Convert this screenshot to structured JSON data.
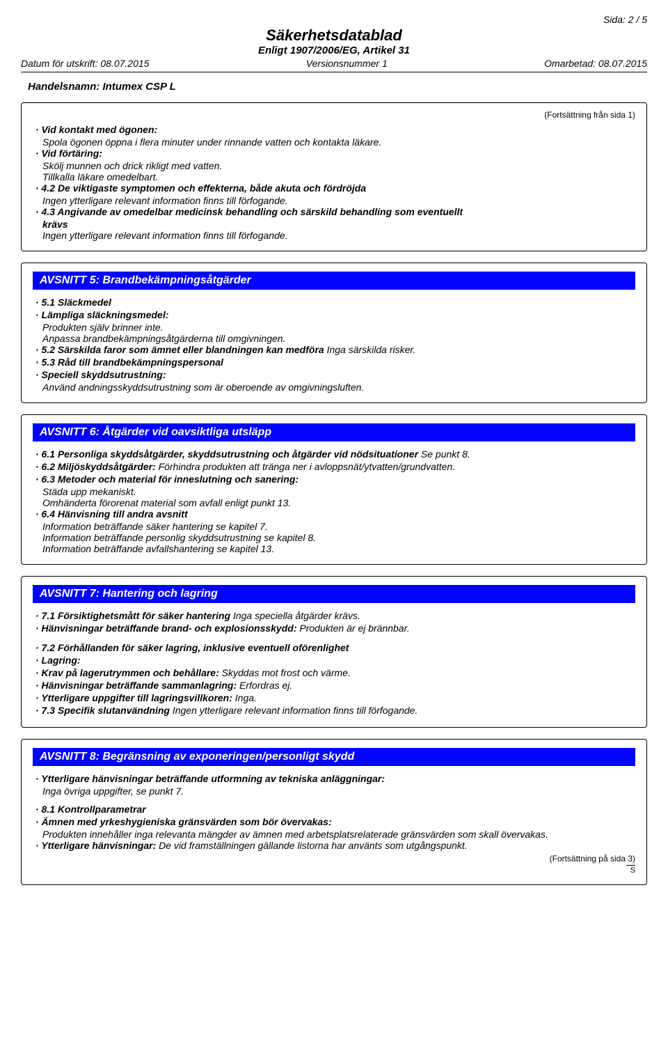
{
  "header": {
    "page_label": "Sida: 2 / 5",
    "title": "Säkerhetsdatablad",
    "subtitle": "Enligt 1907/2006/EG, Artikel 31",
    "print_date": "Datum för utskrift: 08.07.2015",
    "version": "Versionsnummer 1",
    "revised": "Omarbetad: 08.07.2015",
    "trade_name": "Handelsnamn: Intumex CSP L"
  },
  "cont_from": "(Fortsättning från sida 1)",
  "box1": {
    "items": [
      {
        "label": "· Vid kontakt med ögonen:",
        "lines": [
          "Spola ögonen öppna i flera minuter under rinnande vatten och kontakta läkare."
        ]
      },
      {
        "label": "· Vid förtäring:",
        "lines": [
          "Skölj munnen och drick rikligt med vatten.",
          "Tillkalla läkare omedelbart."
        ]
      },
      {
        "label": "· 4.2 De viktigaste symptomen och effekterna, både akuta och fördröjda",
        "lines": [
          "Ingen ytterligare relevant information finns till förfogande."
        ]
      },
      {
        "label": "· 4.3 Angivande av omedelbar medicinsk behandling och särskild behandling som eventuellt",
        "extra_bold": "krävs",
        "lines": [
          "Ingen ytterligare relevant information finns till förfogande."
        ]
      }
    ]
  },
  "section5": {
    "heading": "AVSNITT 5: Brandbekämpningsåtgärder",
    "items": [
      {
        "label": "· 5.1 Släckmedel"
      },
      {
        "label": "· Lämpliga släckningsmedel:",
        "lines": [
          "Produkten själv brinner inte.",
          "Anpassa brandbekämpningsåtgärderna till omgivningen."
        ]
      },
      {
        "label": "· 5.2 Särskilda faror som ämnet eller blandningen kan medföra",
        "inline": "Inga särskilda risker."
      },
      {
        "label": "· 5.3 Råd till brandbekämpningspersonal"
      },
      {
        "label": "· Speciell skyddsutrustning:",
        "lines": [
          "Använd andningsskyddsutrustning som är oberoende av omgivningsluften."
        ]
      }
    ]
  },
  "section6": {
    "heading": "AVSNITT 6: Åtgärder vid oavsiktliga utsläpp",
    "items": [
      {
        "label": "· 6.1 Personliga skyddsåtgärder, skyddsutrustning och åtgärder vid nödsituationer",
        "inline": "Se punkt 8."
      },
      {
        "label": "· 6.2 Miljöskyddsåtgärder:",
        "inline": "Förhindra produkten att tränga ner i avloppsnät/ytvatten/grundvatten."
      },
      {
        "label": "· 6.3 Metoder och material för inneslutning och sanering:",
        "lines": [
          "Städa upp mekaniskt.",
          "Omhänderta förorenat material som avfall enligt punkt 13."
        ]
      },
      {
        "label": "· 6.4 Hänvisning till andra avsnitt",
        "lines": [
          "Information beträffande säker hantering se kapitel 7.",
          "Information beträffande personlig skyddsutrustning se kapitel 8.",
          "Information beträffande avfallshantering se kapitel 13."
        ]
      }
    ]
  },
  "section7": {
    "heading": "AVSNITT 7: Hantering och lagring",
    "group1": [
      {
        "label": "· 7.1 Försiktighetsmått för säker hantering",
        "inline": "Inga speciella åtgärder krävs."
      },
      {
        "label": "· Hänvisningar beträffande brand- och explosionsskydd:",
        "inline": "Produkten är ej brännbar."
      }
    ],
    "group2": [
      {
        "label": "· 7.2 Förhållanden för säker lagring, inklusive eventuell oförenlighet"
      },
      {
        "label": "· Lagring:"
      },
      {
        "label": "· Krav på lagerutrymmen och behållare:",
        "inline": "Skyddas mot frost och värme."
      },
      {
        "label": "· Hänvisningar beträffande sammanlagring:",
        "inline": "Erfordras ej."
      },
      {
        "label": "· Ytterligare uppgifter till lagringsvillkoren:",
        "inline": "Inga."
      },
      {
        "label": "· 7.3 Specifik slutanvändning",
        "inline": "Ingen ytterligare relevant information finns till förfogande."
      }
    ]
  },
  "section8": {
    "heading": "AVSNITT 8: Begränsning av exponeringen/personligt skydd",
    "items": [
      {
        "label": "· Ytterligare hänvisningar beträffande utformning av tekniska anläggningar:",
        "lines": [
          "Inga övriga uppgifter, se punkt 7."
        ]
      }
    ],
    "items2": [
      {
        "label": "· 8.1 Kontrollparametrar"
      },
      {
        "label": "· Ämnen med yrkeshygieniska gränsvärden som bör övervakas:",
        "lines": [
          "Produkten innehåller inga relevanta mängder av ämnen med arbetsplatsrelaterade gränsvärden som skall övervakas."
        ]
      },
      {
        "label": "· Ytterligare hänvisningar:",
        "inline": "De vid framställningen gällande listorna har använts som utgångspunkt."
      }
    ],
    "cont_to": "(Fortsättning på sida 3)",
    "s": "S"
  }
}
